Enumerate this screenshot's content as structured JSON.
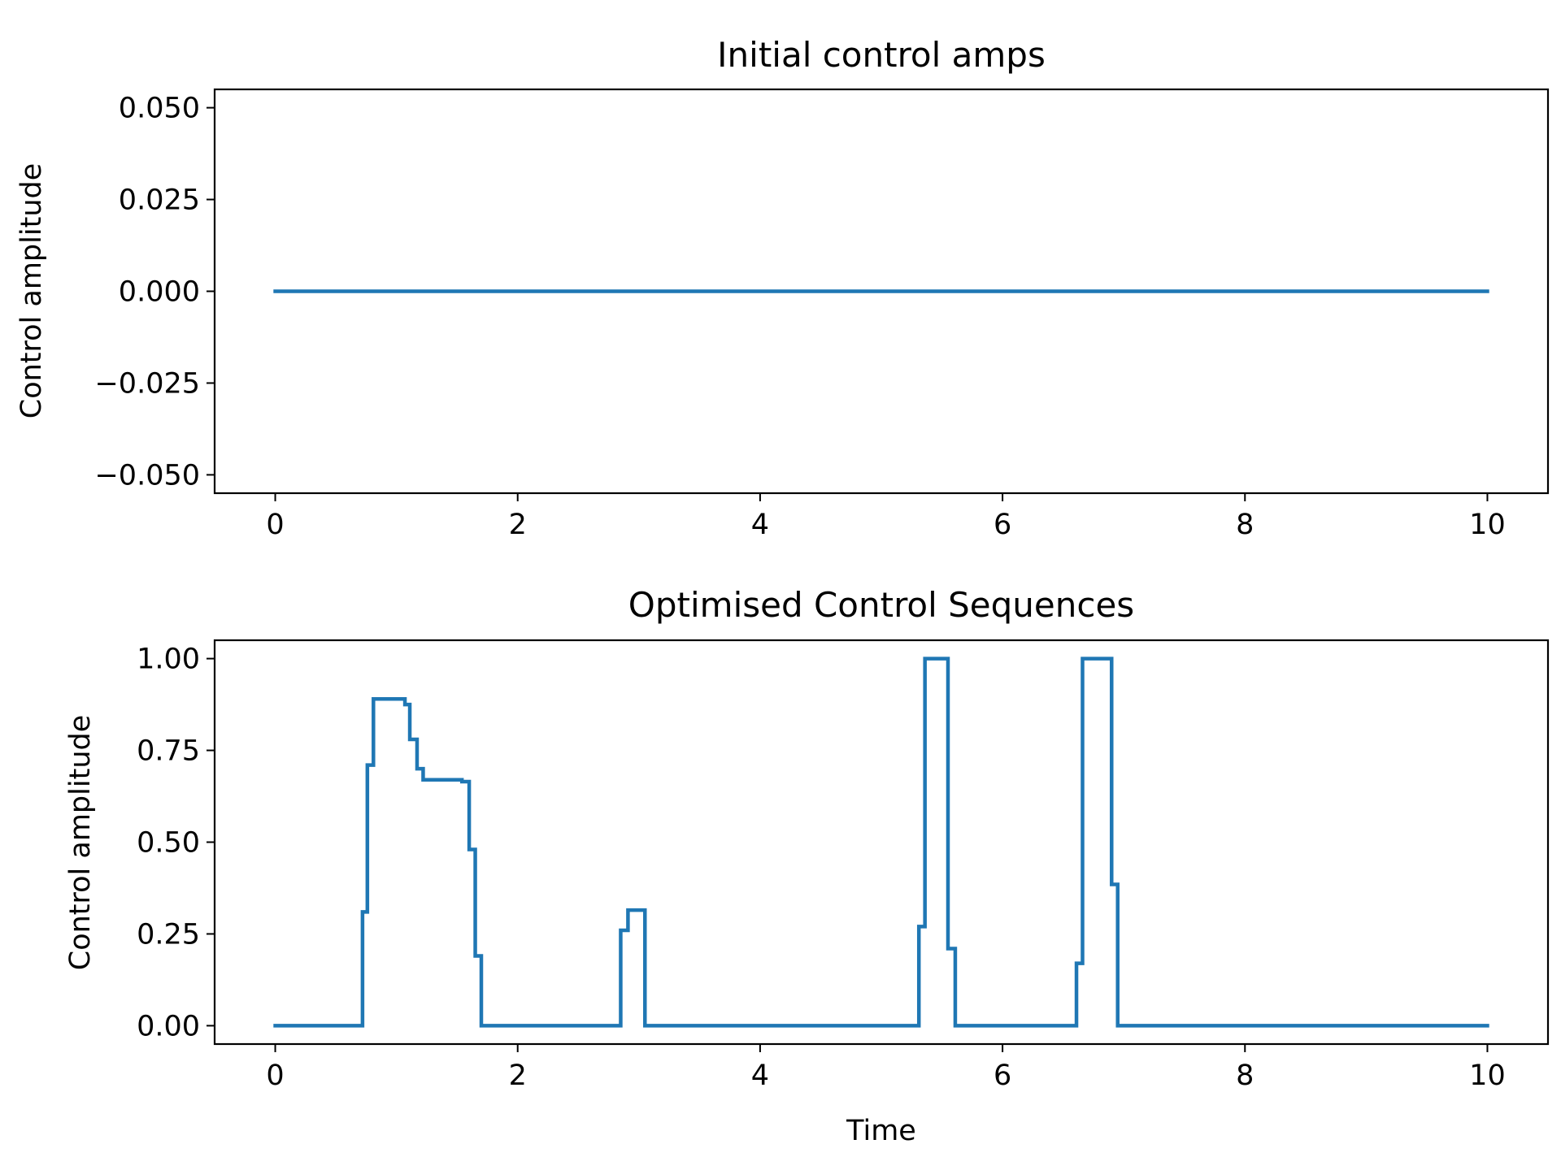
{
  "chart_data": [
    {
      "type": "line",
      "title": "Initial control amps",
      "xlabel": "",
      "ylabel": "Control amplitude",
      "xlim": [
        -0.5,
        10.5
      ],
      "ylim": [
        -0.055,
        0.055
      ],
      "xticks": [
        0,
        2,
        4,
        6,
        8,
        10
      ],
      "xtick_labels": [
        "0",
        "2",
        "4",
        "6",
        "8",
        "10"
      ],
      "yticks": [
        -0.05,
        -0.025,
        0,
        0.025,
        0.05
      ],
      "ytick_labels": [
        "−0.050",
        "−0.025",
        "0.000",
        "0.025",
        "0.050"
      ],
      "grid": false,
      "color": "#1f77b4",
      "series": [
        {
          "x": [
            0,
            10
          ],
          "y": [
            0,
            0
          ]
        }
      ]
    },
    {
      "type": "line",
      "title": "Optimised Control Sequences",
      "xlabel": "Time",
      "ylabel": "Control amplitude",
      "xlim": [
        -0.5,
        10.5
      ],
      "ylim": [
        -0.05,
        1.05
      ],
      "xticks": [
        0,
        2,
        4,
        6,
        8,
        10
      ],
      "xtick_labels": [
        "0",
        "2",
        "4",
        "6",
        "8",
        "10"
      ],
      "yticks": [
        0,
        0.25,
        0.5,
        0.75,
        1.0
      ],
      "ytick_labels": [
        "0.00",
        "0.25",
        "0.50",
        "0.75",
        "1.00"
      ],
      "grid": false,
      "color": "#1f77b4",
      "series": [
        {
          "x": [
            0,
            0.72,
            0.72,
            0.76,
            0.76,
            0.81,
            0.81,
            1.07,
            1.07,
            1.11,
            1.11,
            1.17,
            1.17,
            1.22,
            1.22,
            1.54,
            1.54,
            1.6,
            1.6,
            1.65,
            1.65,
            1.7,
            1.7,
            2.85,
            2.85,
            2.91,
            2.91,
            3.05,
            3.05,
            5.31,
            5.31,
            5.36,
            5.36,
            5.55,
            5.55,
            5.61,
            5.61,
            6.61,
            6.61,
            6.66,
            6.66,
            6.9,
            6.9,
            6.95,
            6.95,
            10
          ],
          "y": [
            0,
            0,
            0.31,
            0.31,
            0.71,
            0.71,
            0.89,
            0.89,
            0.875,
            0.875,
            0.78,
            0.78,
            0.7,
            0.7,
            0.67,
            0.67,
            0.665,
            0.665,
            0.48,
            0.48,
            0.19,
            0.19,
            0,
            0,
            0.26,
            0.26,
            0.315,
            0.315,
            0,
            0,
            0.27,
            0.27,
            1.0,
            1.0,
            0.21,
            0.21,
            0,
            0,
            0.17,
            0.17,
            1.0,
            1.0,
            0.385,
            0.385,
            0,
            0
          ]
        }
      ]
    }
  ]
}
